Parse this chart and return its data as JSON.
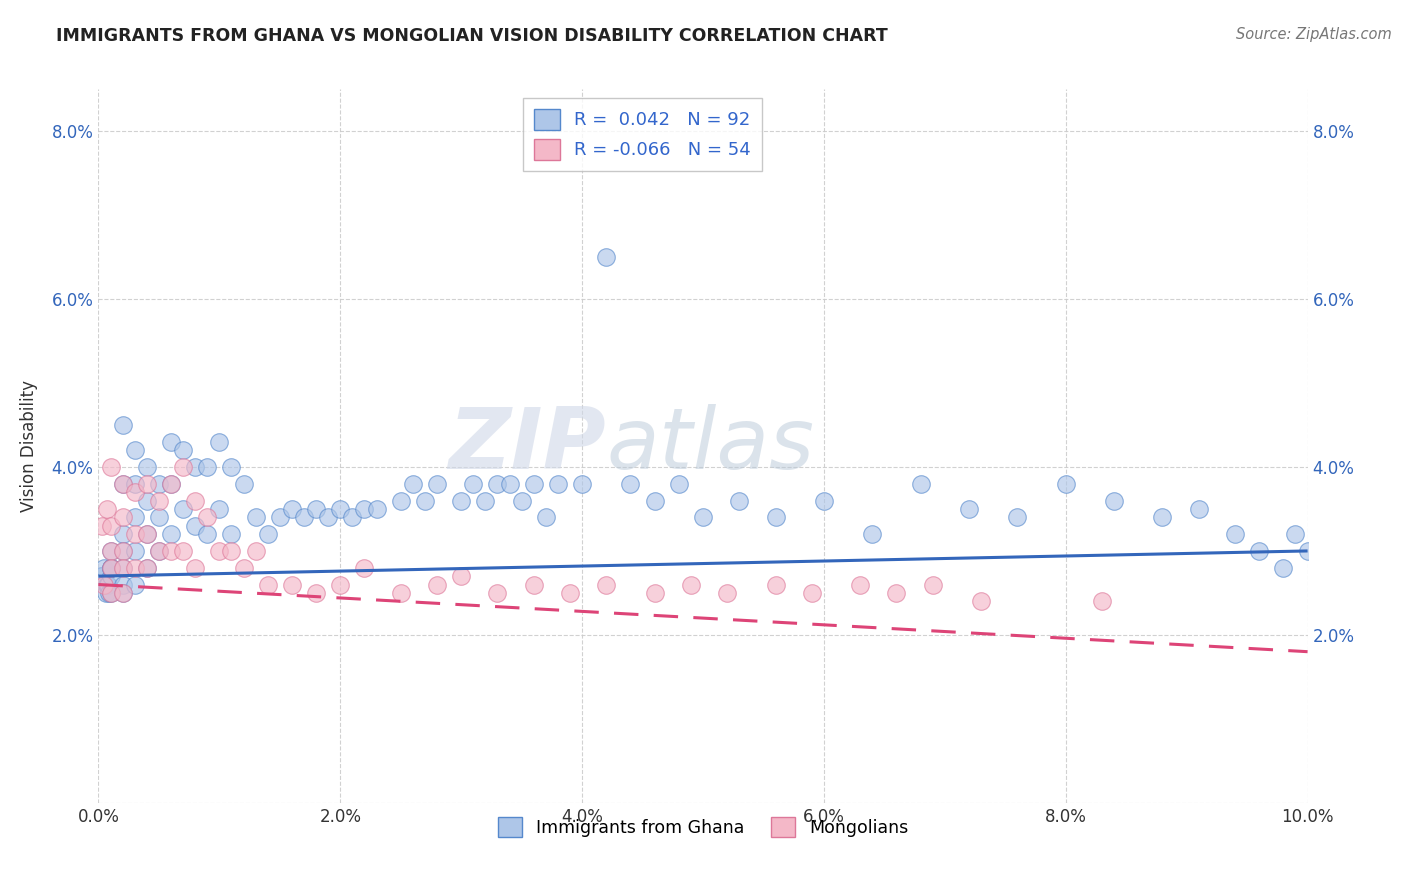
{
  "title": "IMMIGRANTS FROM GHANA VS MONGOLIAN VISION DISABILITY CORRELATION CHART",
  "source": "Source: ZipAtlas.com",
  "ylabel": "Vision Disability",
  "xlim": [
    0.0,
    0.1
  ],
  "ylim": [
    0.0,
    0.085
  ],
  "xtick_vals": [
    0.0,
    0.02,
    0.04,
    0.06,
    0.08,
    0.1
  ],
  "xtick_labels": [
    "0.0%",
    "2.0%",
    "4.0%",
    "6.0%",
    "8.0%",
    "10.0%"
  ],
  "ytick_vals": [
    0.0,
    0.02,
    0.04,
    0.06,
    0.08
  ],
  "ytick_labels_left": [
    "",
    "2.0%",
    "4.0%",
    "6.0%",
    "8.0%"
  ],
  "ytick_labels_right": [
    "",
    "2.0%",
    "4.0%",
    "6.0%",
    "8.0%"
  ],
  "ghana_color": "#aec6e8",
  "ghana_edge": "#5588cc",
  "mongolian_color": "#f4b8c8",
  "mongolian_edge": "#dd7799",
  "line_ghana_color": "#3366bb",
  "line_mongolia_color": "#dd4477",
  "ghana_R": 0.042,
  "ghana_N": 92,
  "mongolia_R": -0.066,
  "mongolia_N": 54,
  "watermark_zip": "ZIP",
  "watermark_atlas": "atlas",
  "ghana_x": [
    0.0002,
    0.0003,
    0.0005,
    0.0006,
    0.0007,
    0.0008,
    0.0009,
    0.001,
    0.001,
    0.001,
    0.001,
    0.001,
    0.001,
    0.002,
    0.002,
    0.002,
    0.002,
    0.002,
    0.002,
    0.002,
    0.003,
    0.003,
    0.003,
    0.003,
    0.003,
    0.004,
    0.004,
    0.004,
    0.004,
    0.005,
    0.005,
    0.005,
    0.006,
    0.006,
    0.006,
    0.007,
    0.007,
    0.008,
    0.008,
    0.009,
    0.009,
    0.01,
    0.01,
    0.011,
    0.011,
    0.012,
    0.013,
    0.014,
    0.015,
    0.016,
    0.017,
    0.018,
    0.019,
    0.02,
    0.021,
    0.022,
    0.023,
    0.025,
    0.026,
    0.027,
    0.028,
    0.03,
    0.031,
    0.032,
    0.033,
    0.034,
    0.035,
    0.036,
    0.037,
    0.038,
    0.04,
    0.042,
    0.044,
    0.046,
    0.048,
    0.05,
    0.053,
    0.056,
    0.06,
    0.064,
    0.068,
    0.072,
    0.076,
    0.08,
    0.084,
    0.088,
    0.091,
    0.094,
    0.096,
    0.098,
    0.099,
    0.1
  ],
  "ghana_y": [
    0.027,
    0.027,
    0.028,
    0.025,
    0.026,
    0.026,
    0.025,
    0.027,
    0.025,
    0.028,
    0.028,
    0.03,
    0.028,
    0.045,
    0.038,
    0.032,
    0.03,
    0.028,
    0.026,
    0.025,
    0.042,
    0.038,
    0.034,
    0.03,
    0.026,
    0.04,
    0.036,
    0.032,
    0.028,
    0.038,
    0.034,
    0.03,
    0.043,
    0.038,
    0.032,
    0.042,
    0.035,
    0.04,
    0.033,
    0.04,
    0.032,
    0.043,
    0.035,
    0.04,
    0.032,
    0.038,
    0.034,
    0.032,
    0.034,
    0.035,
    0.034,
    0.035,
    0.034,
    0.035,
    0.034,
    0.035,
    0.035,
    0.036,
    0.038,
    0.036,
    0.038,
    0.036,
    0.038,
    0.036,
    0.038,
    0.038,
    0.036,
    0.038,
    0.034,
    0.038,
    0.038,
    0.065,
    0.038,
    0.036,
    0.038,
    0.034,
    0.036,
    0.034,
    0.036,
    0.032,
    0.038,
    0.035,
    0.034,
    0.038,
    0.036,
    0.034,
    0.035,
    0.032,
    0.03,
    0.028,
    0.032,
    0.03
  ],
  "mongolia_x": [
    0.0003,
    0.0005,
    0.0007,
    0.001,
    0.001,
    0.001,
    0.001,
    0.001,
    0.002,
    0.002,
    0.002,
    0.002,
    0.002,
    0.003,
    0.003,
    0.003,
    0.004,
    0.004,
    0.004,
    0.005,
    0.005,
    0.006,
    0.006,
    0.007,
    0.007,
    0.008,
    0.008,
    0.009,
    0.01,
    0.011,
    0.012,
    0.013,
    0.014,
    0.016,
    0.018,
    0.02,
    0.022,
    0.025,
    0.028,
    0.03,
    0.033,
    0.036,
    0.039,
    0.042,
    0.046,
    0.049,
    0.052,
    0.056,
    0.059,
    0.063,
    0.066,
    0.069,
    0.073,
    0.083
  ],
  "mongolia_y": [
    0.033,
    0.026,
    0.035,
    0.04,
    0.033,
    0.03,
    0.028,
    0.025,
    0.038,
    0.034,
    0.03,
    0.028,
    0.025,
    0.037,
    0.032,
    0.028,
    0.038,
    0.032,
    0.028,
    0.036,
    0.03,
    0.038,
    0.03,
    0.04,
    0.03,
    0.036,
    0.028,
    0.034,
    0.03,
    0.03,
    0.028,
    0.03,
    0.026,
    0.026,
    0.025,
    0.026,
    0.028,
    0.025,
    0.026,
    0.027,
    0.025,
    0.026,
    0.025,
    0.026,
    0.025,
    0.026,
    0.025,
    0.026,
    0.025,
    0.026,
    0.025,
    0.026,
    0.024,
    0.024
  ]
}
